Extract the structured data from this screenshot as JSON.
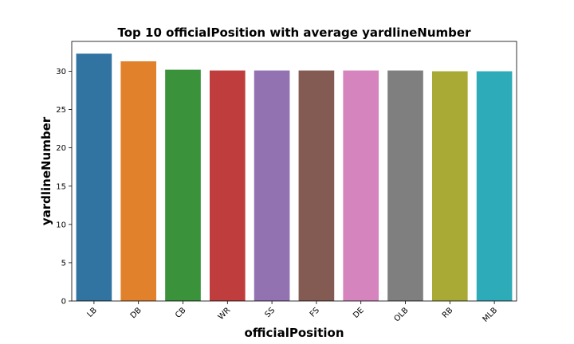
{
  "chart_data": {
    "type": "bar",
    "title": "Top 10 officialPosition with average yardlineNumber",
    "xlabel": "officialPosition",
    "ylabel": "yardlineNumber",
    "categories": [
      "LB",
      "DB",
      "CB",
      "WR",
      "SS",
      "FS",
      "DE",
      "OLB",
      "RB",
      "MLB"
    ],
    "values": [
      32.3,
      31.3,
      30.2,
      30.1,
      30.1,
      30.1,
      30.1,
      30.1,
      30.0,
      30.0
    ],
    "colors": [
      "#3274a1",
      "#e1812c",
      "#3a923a",
      "#c03d3e",
      "#9372b2",
      "#845b53",
      "#d684bd",
      "#7f7f7f",
      "#a9aa35",
      "#2eabb8"
    ],
    "ylim": [
      0,
      33.9
    ],
    "yticks": [
      0,
      5,
      10,
      15,
      20,
      25,
      30
    ],
    "grid": false,
    "legend": "none"
  }
}
